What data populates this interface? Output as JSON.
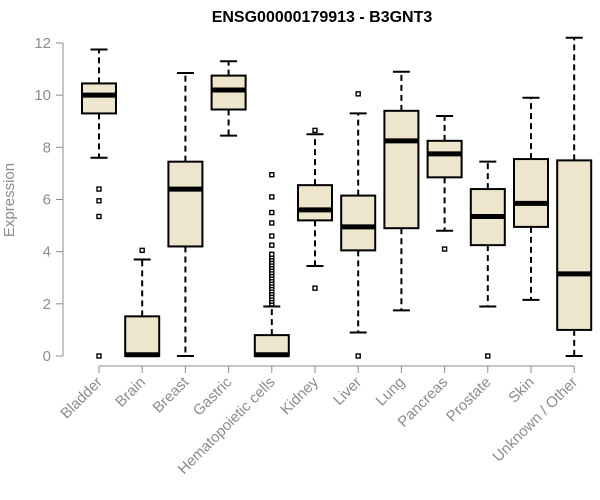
{
  "chart_data": {
    "type": "boxplot",
    "title": "ENSG00000179913 - B3GNT3",
    "xlabel": "",
    "ylabel": "Expression",
    "ylim": [
      0,
      12.3
    ],
    "yticks": [
      0,
      2,
      4,
      6,
      8,
      10,
      12
    ],
    "box_fill": "#ede6cc",
    "box_stroke": "#000000",
    "axis_color": "#8c8c8c",
    "categories": [
      "Bladder",
      "Brain",
      "Breast",
      "Gastric",
      "Hematopoietic cells",
      "Kidney",
      "Liver",
      "Lung",
      "Pancreas",
      "Prostate",
      "Skin",
      "Unknown / Other"
    ],
    "boxes": [
      {
        "label": "Bladder",
        "whisker_low": 7.6,
        "q1": 9.3,
        "median": 10.0,
        "q3": 10.45,
        "whisker_high": 11.75,
        "outliers": [
          0,
          5.35,
          5.95,
          6.4
        ]
      },
      {
        "label": "Brain",
        "whisker_low": 0,
        "q1": 0,
        "median": 0.05,
        "q3": 1.52,
        "whisker_high": 3.7,
        "outliers": [
          4.05
        ]
      },
      {
        "label": "Breast",
        "whisker_low": 0,
        "q1": 4.2,
        "median": 6.4,
        "q3": 7.45,
        "whisker_high": 10.85,
        "outliers": []
      },
      {
        "label": "Gastric",
        "whisker_low": 8.45,
        "q1": 9.45,
        "median": 10.2,
        "q3": 10.75,
        "whisker_high": 11.3,
        "outliers": []
      },
      {
        "label": "Hematopoietic cells",
        "whisker_low": 0,
        "q1": 0,
        "median": 0.05,
        "q3": 0.8,
        "whisker_high": 1.9,
        "outliers": [
          2.0,
          2.1,
          2.2,
          2.3,
          2.4,
          2.5,
          2.6,
          2.7,
          2.8,
          2.9,
          3.0,
          3.1,
          3.2,
          3.3,
          3.4,
          3.5,
          3.6,
          3.7,
          3.8,
          3.9,
          4.25,
          4.6,
          5.1,
          5.5,
          6.1,
          6.95
        ]
      },
      {
        "label": "Kidney",
        "whisker_low": 3.45,
        "q1": 5.2,
        "median": 5.6,
        "q3": 6.55,
        "whisker_high": 8.5,
        "outliers": [
          2.6,
          8.65
        ]
      },
      {
        "label": "Liver",
        "whisker_low": 0.9,
        "q1": 4.05,
        "median": 4.95,
        "q3": 6.15,
        "whisker_high": 9.3,
        "outliers": [
          0,
          10.05
        ]
      },
      {
        "label": "Lung",
        "whisker_low": 1.75,
        "q1": 4.9,
        "median": 8.25,
        "q3": 9.4,
        "whisker_high": 10.9,
        "outliers": []
      },
      {
        "label": "Pancreas",
        "whisker_low": 4.8,
        "q1": 6.85,
        "median": 7.75,
        "q3": 8.25,
        "whisker_high": 9.2,
        "outliers": [
          4.1
        ]
      },
      {
        "label": "Prostate",
        "whisker_low": 1.9,
        "q1": 4.25,
        "median": 5.35,
        "q3": 6.4,
        "whisker_high": 7.45,
        "outliers": [
          0
        ]
      },
      {
        "label": "Skin",
        "whisker_low": 2.15,
        "q1": 4.95,
        "median": 5.85,
        "q3": 7.55,
        "whisker_high": 9.9,
        "outliers": []
      },
      {
        "label": "Unknown / Other",
        "whisker_low": 0,
        "q1": 1.0,
        "median": 3.15,
        "q3": 7.5,
        "whisker_high": 12.2,
        "outliers": []
      }
    ]
  }
}
